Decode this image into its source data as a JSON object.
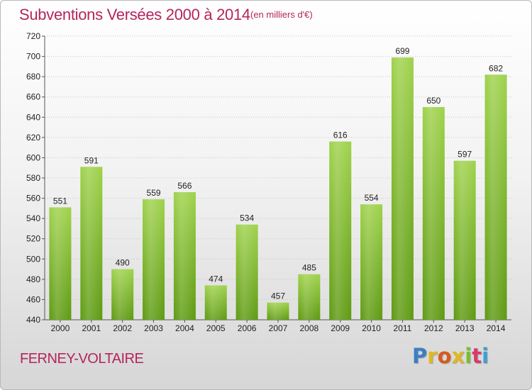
{
  "header": {
    "title": "Subventions Versées 2000 à 2014",
    "subtitle": "(en milliers d'€)"
  },
  "footer": {
    "town": "FERNEY-VOLTAIRE",
    "logo_text": "Proxiti",
    "logo_colors": [
      "#3a7fc4",
      "#e0b820",
      "#d85a1f",
      "#e0b820",
      "#7bbd2c",
      "#d83a6a",
      "#3a9fd4"
    ]
  },
  "chart_data": {
    "type": "bar",
    "title": "Subventions Versées 2000 à 2014",
    "subtitle": "(en milliers d'€)",
    "categories": [
      "2000",
      "2001",
      "2002",
      "2003",
      "2004",
      "2005",
      "2006",
      "2007",
      "2008",
      "2009",
      "2010",
      "2011",
      "2012",
      "2013",
      "2014"
    ],
    "values": [
      551,
      591,
      490,
      559,
      566,
      474,
      534,
      457,
      485,
      616,
      554,
      699,
      650,
      597,
      682
    ],
    "data_labels": [
      "551",
      "591",
      "490",
      "559",
      "566",
      "474",
      "534",
      "457",
      "485",
      "616",
      "554",
      "699",
      "650",
      "597",
      "682"
    ],
    "ylim": [
      440,
      720
    ],
    "yticks": [
      "440",
      "460",
      "480",
      "500",
      "520",
      "540",
      "560",
      "580",
      "600",
      "620",
      "640",
      "660",
      "680",
      "700",
      "720"
    ],
    "grid": true,
    "bar_color": "#7cb92e"
  }
}
